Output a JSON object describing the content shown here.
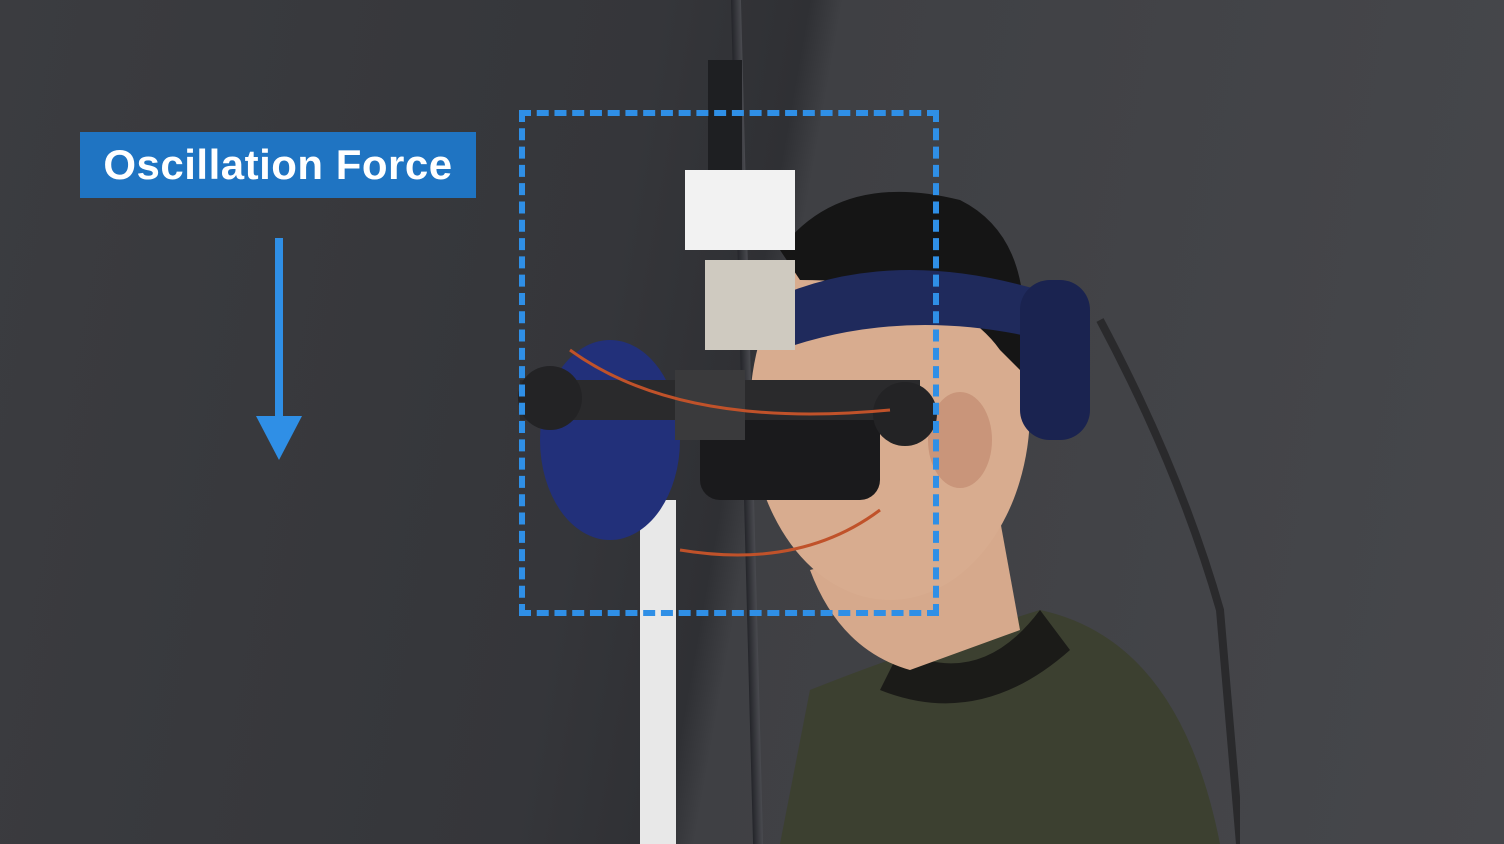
{
  "label": {
    "text": "Oscillation Force"
  },
  "arrow": {
    "direction": "down",
    "color": "#2f8fe6"
  },
  "highlight": {
    "style": "dashed",
    "color": "#2f8fe6"
  },
  "colors": {
    "label_bg": "#1f74c2",
    "label_text": "#ffffff",
    "backdrop": "#3a3b3f"
  },
  "icons": {
    "arrow": "arrow-down-icon"
  }
}
